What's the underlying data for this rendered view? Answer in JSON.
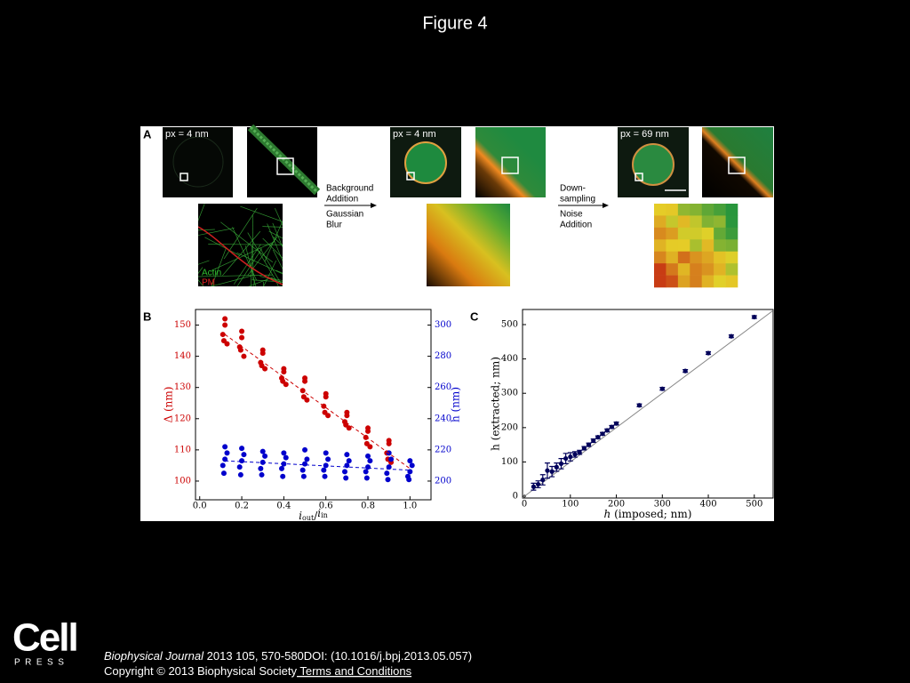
{
  "title": "Figure 4",
  "panel_a": {
    "label": "A",
    "captions": [
      "px = 4 nm",
      "px = 4 nm",
      "px = 69 nm"
    ],
    "legend": [
      "Actin",
      "PM"
    ],
    "step1": [
      "Background",
      "Addition",
      "Gaussian",
      "Blur"
    ],
    "step2": [
      "Down-",
      "sampling",
      "Noise",
      "Addition"
    ]
  },
  "chart_data": [
    {
      "type": "scatter",
      "panel": "B",
      "xlabel": [
        "i",
        "out",
        "/",
        "i",
        "in"
      ],
      "ylabel": "Δ (nm)",
      "y2label": "h (nm)",
      "ylabel_color": "#cc0000",
      "y2label_color": "#0000cc",
      "xlim": [
        -0.02,
        1.1
      ],
      "xticks": [
        {
          "value": 0,
          "label": "0.0"
        },
        0.2,
        0.4,
        0.6,
        0.8,
        {
          "value": 1,
          "label": "1.0"
        }
      ],
      "ylim": [
        94,
        155
      ],
      "yticks": [
        100,
        110,
        120,
        130,
        140,
        150
      ],
      "y2lim": [
        188,
        310
      ],
      "y2ticks": [
        200,
        220,
        240,
        260,
        280,
        300
      ],
      "series": [
        {
          "color": "#cc0000",
          "x": [
            0.11,
            0.12,
            0.13,
            0.12,
            0.115,
            0.19,
            0.2,
            0.21,
            0.2,
            0.195,
            0.29,
            0.3,
            0.31,
            0.3,
            0.295,
            0.39,
            0.4,
            0.41,
            0.4,
            0.395,
            0.49,
            0.5,
            0.51,
            0.5,
            0.495,
            0.59,
            0.6,
            0.61,
            0.6,
            0.595,
            0.69,
            0.7,
            0.71,
            0.7,
            0.695,
            0.79,
            0.8,
            0.81,
            0.8,
            0.795,
            0.89,
            0.9,
            0.91,
            0.9,
            0.895
          ],
          "values": [
            147,
            150,
            144,
            152,
            145,
            143,
            146,
            140,
            148,
            142,
            138,
            141,
            136,
            142,
            137,
            133,
            135,
            131,
            136,
            132,
            129,
            132,
            126,
            133,
            127,
            124,
            127,
            121,
            128,
            122,
            119,
            121,
            117,
            122,
            118,
            114,
            116,
            111,
            117,
            112,
            109,
            112,
            106,
            113,
            107
          ]
        },
        {
          "color": "#0000cc",
          "axis": "y2",
          "x": [
            0.11,
            0.12,
            0.13,
            0.12,
            0.115,
            0.19,
            0.2,
            0.21,
            0.2,
            0.195,
            0.29,
            0.3,
            0.31,
            0.3,
            0.295,
            0.39,
            0.4,
            0.41,
            0.4,
            0.395,
            0.49,
            0.5,
            0.51,
            0.5,
            0.495,
            0.59,
            0.6,
            0.61,
            0.6,
            0.595,
            0.69,
            0.7,
            0.71,
            0.7,
            0.695,
            0.79,
            0.8,
            0.81,
            0.8,
            0.795,
            0.89,
            0.9,
            0.91,
            0.9,
            0.895,
            0.99,
            1.0,
            1.01,
            1.0,
            0.995
          ],
          "values": [
            210,
            214,
            218,
            222,
            205,
            209,
            213,
            217,
            221,
            204,
            208,
            212,
            216,
            219,
            204,
            208,
            211,
            215,
            218,
            203,
            207,
            211,
            214,
            220,
            203,
            207,
            210,
            214,
            218,
            203,
            206,
            210,
            213,
            217,
            202,
            206,
            209,
            213,
            216,
            202,
            205,
            209,
            214,
            218,
            201,
            203,
            206,
            210,
            213,
            201
          ]
        },
        {
          "color": "#cc0000",
          "mode": "line",
          "dashed": true,
          "x": [
            0.12,
            1.0
          ],
          "values": [
            147,
            104
          ]
        },
        {
          "color": "#0000cc",
          "mode": "line",
          "dashed": true,
          "axis": "y2",
          "x": [
            0.12,
            1.0
          ],
          "values": [
            213,
            207
          ]
        }
      ]
    },
    {
      "type": "scatter",
      "panel": "C",
      "xlabel": [
        "h",
        " (imposed; nm)"
      ],
      "ylabel": "h (extracted; nm)",
      "xlim": [
        -4,
        541
      ],
      "xticks": [
        0,
        100,
        200,
        300,
        400,
        500
      ],
      "ylim": [
        -5,
        544
      ],
      "yticks": [
        0,
        100,
        200,
        300,
        400,
        500
      ],
      "identity_line": true,
      "identity_color": "#888888",
      "series": [
        {
          "color": "#00005a",
          "x": [
            20,
            30,
            40,
            50,
            60,
            70,
            80,
            90,
            100,
            110,
            120,
            130,
            140,
            150,
            160,
            170,
            180,
            190,
            200,
            250,
            300,
            350,
            400,
            450,
            500
          ],
          "values": [
            28,
            35,
            48,
            75,
            72,
            85,
            95,
            110,
            115,
            122,
            128,
            140,
            150,
            162,
            172,
            182,
            192,
            202,
            212,
            265,
            313,
            365,
            417,
            466,
            522
          ],
          "errors": [
            10,
            10,
            15,
            22,
            15,
            12,
            15,
            15,
            12,
            8,
            6,
            5,
            5,
            5,
            4,
            4,
            4,
            4,
            4,
            4,
            4,
            4,
            4,
            4,
            4
          ]
        }
      ]
    }
  ],
  "footer": {
    "logo": "Cell",
    "logo_sub": "PRESS",
    "journal": "Biophysical Journal",
    "citation": " 2013 105, 570-580DOI: (10.1016/j.bpj.2013.05.057)",
    "copyright": "Copyright © 2013 Biophysical Society",
    "link": " Terms and Conditions"
  }
}
